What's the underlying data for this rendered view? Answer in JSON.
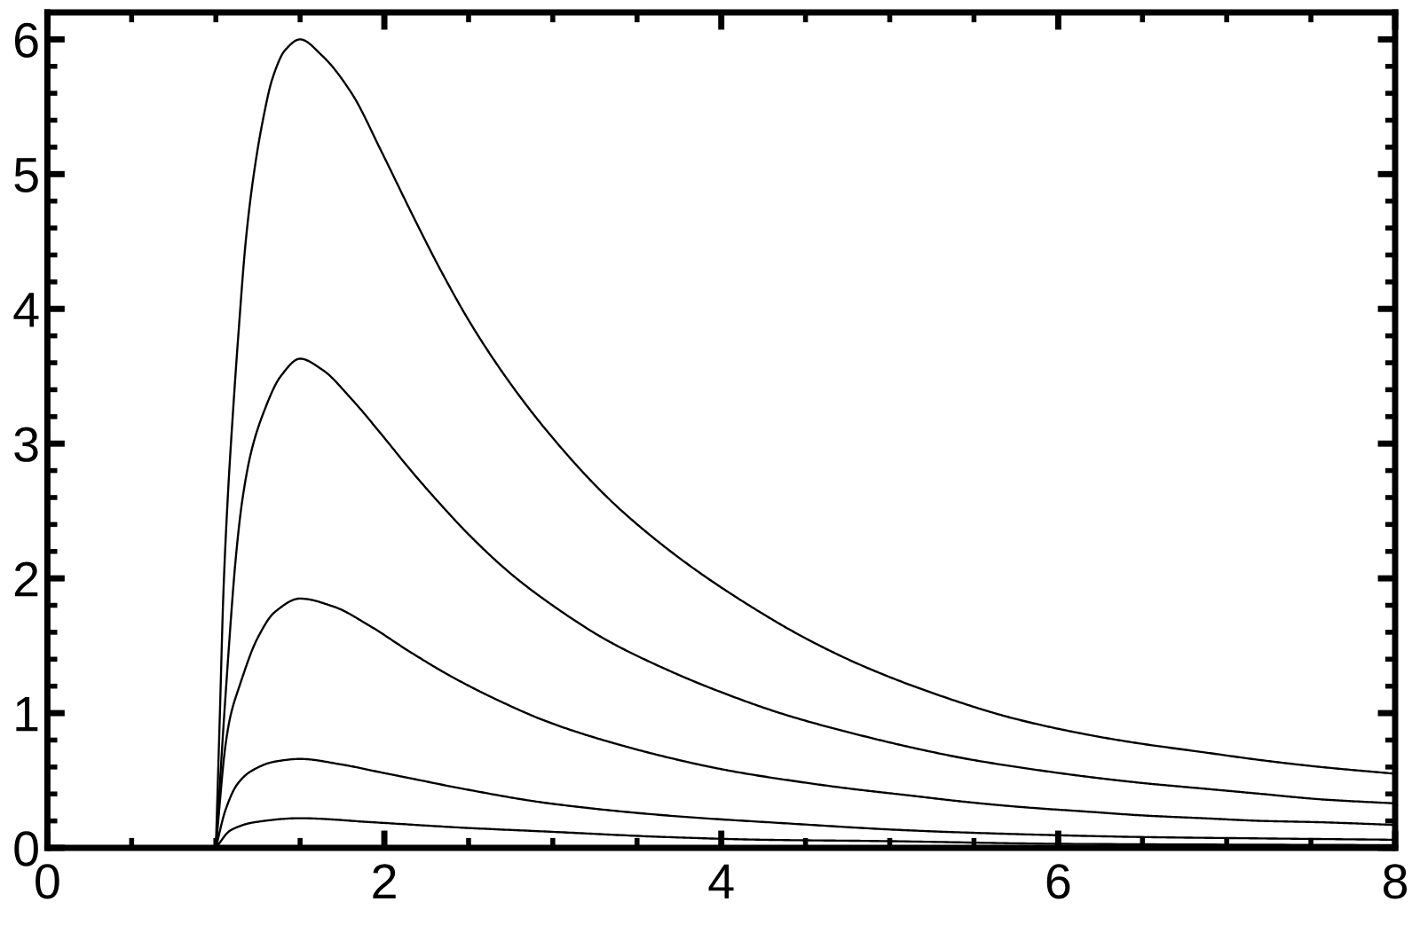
{
  "chart_data": {
    "type": "line",
    "xlim": [
      0,
      8
    ],
    "ylim": [
      0,
      6.2
    ],
    "xticks": [
      0,
      {
        "value": 0.5,
        "label": null
      },
      {
        "value": 1,
        "label": null
      },
      {
        "value": 1.5,
        "label": null
      },
      2,
      {
        "value": 2.5,
        "label": null
      },
      {
        "value": 3,
        "label": null
      },
      {
        "value": 3.5,
        "label": null
      },
      4,
      {
        "value": 4.5,
        "label": null
      },
      {
        "value": 5,
        "label": null
      },
      {
        "value": 5.5,
        "label": null
      },
      6,
      {
        "value": 6.5,
        "label": null
      },
      {
        "value": 7,
        "label": null
      },
      {
        "value": 7.5,
        "label": null
      },
      8
    ],
    "yticks": [
      0,
      {
        "value": 0.2,
        "label": null
      },
      {
        "value": 0.4,
        "label": null
      },
      {
        "value": 0.6,
        "label": null
      },
      {
        "value": 0.8,
        "label": null
      },
      1,
      {
        "value": 1.2,
        "label": null
      },
      {
        "value": 1.4,
        "label": null
      },
      {
        "value": 1.6,
        "label": null
      },
      {
        "value": 1.8,
        "label": null
      },
      2,
      {
        "value": 2.2,
        "label": null
      },
      {
        "value": 2.4,
        "label": null
      },
      {
        "value": 2.6,
        "label": null
      },
      {
        "value": 2.8,
        "label": null
      },
      3,
      {
        "value": 3.2,
        "label": null
      },
      {
        "value": 3.4,
        "label": null
      },
      {
        "value": 3.6,
        "label": null
      },
      {
        "value": 3.8,
        "label": null
      },
      4,
      {
        "value": 4.2,
        "label": null
      },
      {
        "value": 4.4,
        "label": null
      },
      {
        "value": 4.6,
        "label": null
      },
      {
        "value": 4.8,
        "label": null
      },
      5,
      {
        "value": 5.2,
        "label": null
      },
      {
        "value": 5.4,
        "label": null
      },
      {
        "value": 5.6,
        "label": null
      },
      {
        "value": 5.8,
        "label": null
      },
      6
    ],
    "marker": "none",
    "line_style": "solid",
    "series": [
      {
        "color": "#000000",
        "x": [
          1.0,
          1.024,
          1.045,
          1.072,
          1.102,
          1.136,
          1.178,
          1.223,
          1.279,
          1.336,
          1.411,
          1.5,
          1.63,
          1.806,
          1.982,
          2.158,
          2.333,
          2.508,
          2.684,
          2.859,
          3.035,
          3.245,
          3.41,
          3.763,
          4.114,
          4.508,
          4.859,
          5.298,
          5.737,
          6.175,
          6.456,
          6.86,
          7.21,
          7.56,
          8.0
        ],
        "values": [
          0,
          1.0,
          1.9,
          2.63,
          3.24,
          3.85,
          4.51,
          4.98,
          5.4,
          5.71,
          5.92,
          6.0,
          5.88,
          5.6,
          5.17,
          4.72,
          4.29,
          3.9,
          3.56,
          3.26,
          2.99,
          2.7,
          2.5,
          2.14,
          1.84,
          1.55,
          1.34,
          1.13,
          0.96,
          0.84,
          0.78,
          0.71,
          0.65,
          0.6,
          0.55
        ]
      },
      {
        "color": "#000000",
        "x": [
          1.0,
          1.059,
          1.122,
          1.157,
          1.21,
          1.28,
          1.385,
          1.5,
          1.63,
          1.806,
          1.982,
          2.158,
          2.333,
          2.513,
          2.755,
          2.998,
          3.322,
          3.646,
          3.969,
          4.375,
          4.78,
          5.184,
          5.46,
          5.81,
          6.16,
          6.51,
          6.86,
          7.21,
          7.56,
          8.0
        ],
        "values": [
          0,
          1.16,
          2.2,
          2.58,
          2.94,
          3.22,
          3.5,
          3.63,
          3.55,
          3.33,
          3.07,
          2.8,
          2.55,
          2.31,
          2.03,
          1.8,
          1.54,
          1.34,
          1.17,
          0.99,
          0.85,
          0.73,
          0.66,
          0.59,
          0.53,
          0.48,
          0.44,
          0.4,
          0.36,
          0.33
        ]
      },
      {
        "color": "#000000",
        "x": [
          1.0,
          1.057,
          1.087,
          1.14,
          1.245,
          1.35,
          1.5,
          1.7,
          1.91,
          2.158,
          2.4,
          2.684,
          2.96,
          3.245,
          3.72,
          4.06,
          4.41,
          4.76,
          5.11,
          5.46,
          5.81,
          6.16,
          6.51,
          6.86,
          7.21,
          7.56,
          8.0
        ],
        "values": [
          0,
          0.76,
          0.98,
          1.2,
          1.55,
          1.75,
          1.85,
          1.79,
          1.65,
          1.45,
          1.27,
          1.09,
          0.94,
          0.82,
          0.66,
          0.57,
          0.5,
          0.44,
          0.39,
          0.34,
          0.3,
          0.27,
          0.24,
          0.22,
          0.2,
          0.19,
          0.17
        ]
      },
      {
        "color": "#000000",
        "x": [
          1.0,
          1.057,
          1.126,
          1.21,
          1.35,
          1.5,
          1.74,
          1.98,
          2.18,
          2.46,
          2.98,
          3.68,
          4.41,
          5.11,
          5.81,
          6.51,
          7.21,
          8.0
        ],
        "values": [
          0,
          0.28,
          0.47,
          0.57,
          0.64,
          0.66,
          0.62,
          0.56,
          0.51,
          0.44,
          0.33,
          0.24,
          0.18,
          0.13,
          0.1,
          0.08,
          0.07,
          0.06
        ]
      },
      {
        "color": "#000000",
        "x": [
          1.0,
          1.087,
          1.23,
          1.5,
          1.93,
          2.46,
          2.98,
          3.68,
          4.25,
          4.98,
          6.0,
          8.0
        ],
        "values": [
          0,
          0.13,
          0.19,
          0.22,
          0.19,
          0.15,
          0.12,
          0.08,
          0.06,
          0.05,
          0.03,
          0.02
        ]
      }
    ]
  }
}
